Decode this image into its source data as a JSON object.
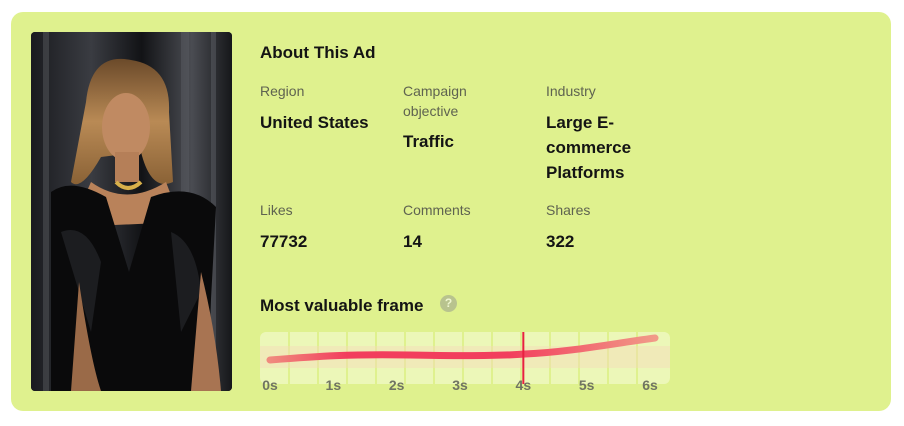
{
  "about": {
    "title": "About This Ad",
    "fields": [
      {
        "label": "Region",
        "value": "United States"
      },
      {
        "label": "Campaign objective",
        "value": "Traffic"
      },
      {
        "label": "Industry",
        "value": "Large E-commerce Platforms"
      },
      {
        "label": "Likes",
        "value": "77732"
      },
      {
        "label": "Comments",
        "value": "14"
      },
      {
        "label": "Shares",
        "value": "322"
      }
    ]
  },
  "frame": {
    "title": "Most valuable frame",
    "help_icon": "question-icon",
    "ticks": [
      "0s",
      "1s",
      "2s",
      "3s",
      "4s",
      "5s",
      "6s"
    ],
    "marker_seconds": 4,
    "colors": {
      "card": "#dff18e",
      "curve": "#f23e5d",
      "marker": "#e8213f"
    }
  }
}
